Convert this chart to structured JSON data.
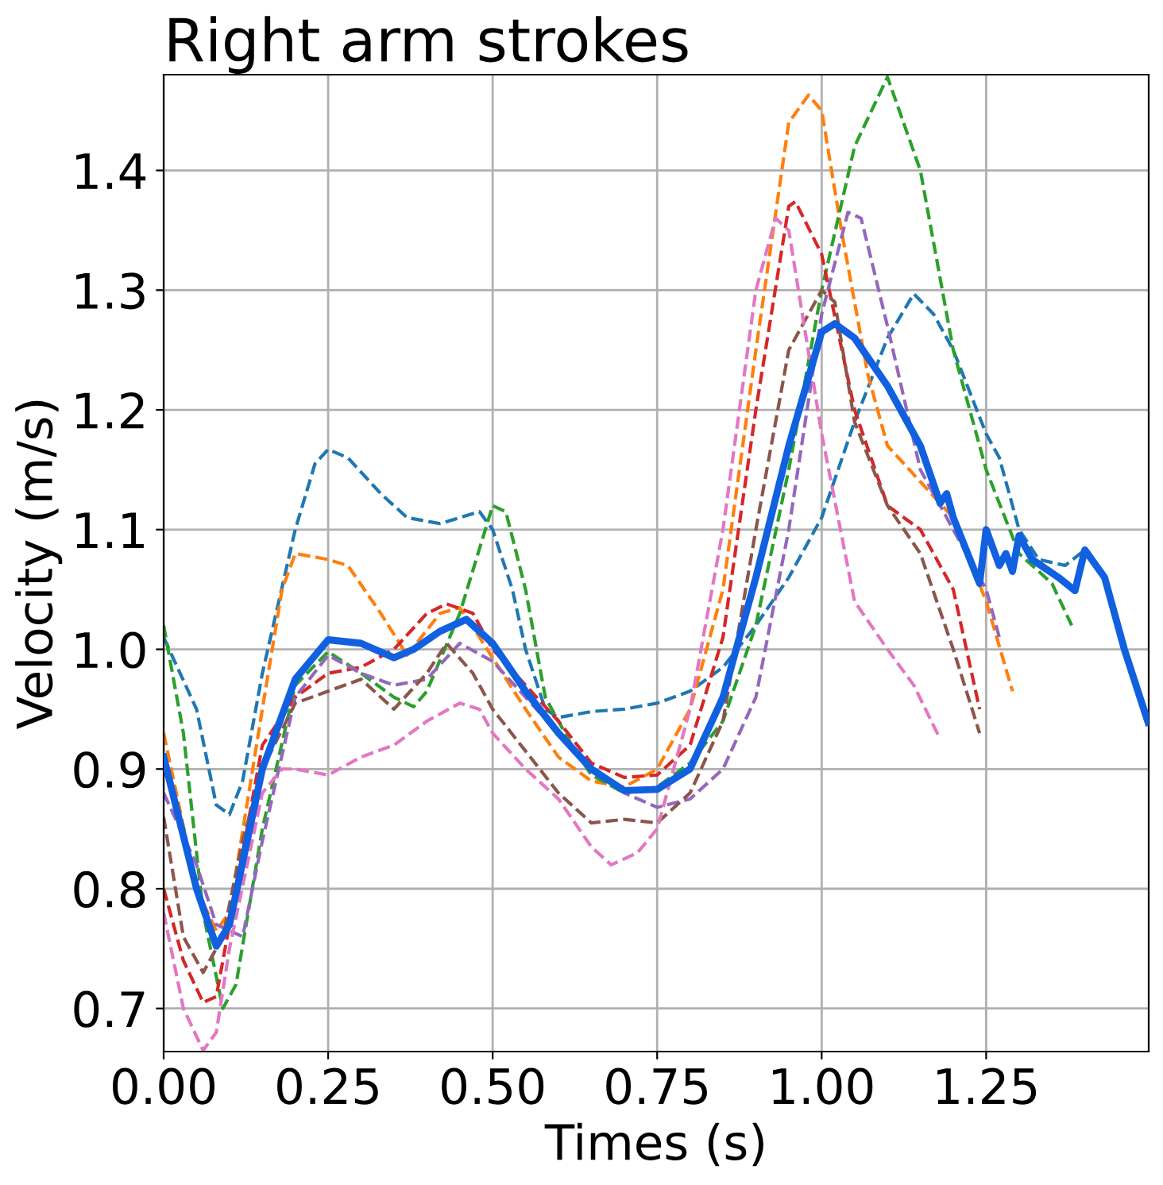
{
  "chart_data": {
    "type": "line",
    "title": "Right arm strokes",
    "xlabel": "Times (s)",
    "ylabel": "Velocity (m/s)",
    "xlim": [
      0,
      1.497
    ],
    "ylim": [
      0.664,
      1.48
    ],
    "xticks": [
      {
        "value": 0,
        "label": "0.00"
      },
      0.25,
      {
        "value": 0.5,
        "label": "0.50"
      },
      0.75,
      {
        "value": 1,
        "label": "1.00"
      },
      1.25
    ],
    "yticks": [
      0.7,
      0.8,
      0.9,
      {
        "value": 1,
        "label": "1.0"
      },
      1.1,
      1.2,
      1.3,
      1.4
    ],
    "grid": true,
    "legend": false,
    "marker": "none",
    "series": [
      {
        "color": "#1f77b4",
        "line_style": "dashed",
        "x": [
          0,
          0.05,
          0.08,
          0.1,
          0.12,
          0.15,
          0.2,
          0.23,
          0.25,
          0.28,
          0.33,
          0.37,
          0.42,
          0.45,
          0.48,
          0.5,
          0.53,
          0.55,
          0.58,
          0.6,
          0.65,
          0.7,
          0.75,
          0.8,
          0.85,
          0.9,
          0.95,
          1.0,
          1.05,
          1.1,
          1.14,
          1.17,
          1.2,
          1.25,
          1.27,
          1.3,
          1.33,
          1.37,
          1.4
        ],
        "values": [
          1.01,
          0.95,
          0.87,
          0.862,
          0.89,
          0.98,
          1.1,
          1.155,
          1.167,
          1.16,
          1.13,
          1.11,
          1.105,
          1.11,
          1.115,
          1.1,
          1.05,
          1.0,
          0.95,
          0.943,
          0.948,
          0.95,
          0.955,
          0.965,
          0.985,
          1.02,
          1.06,
          1.11,
          1.19,
          1.26,
          1.297,
          1.28,
          1.25,
          1.18,
          1.16,
          1.1,
          1.075,
          1.07,
          1.083
        ]
      },
      {
        "color": "#ff7f0e",
        "line_style": "dashed",
        "x": [
          0,
          0.05,
          0.08,
          0.1,
          0.15,
          0.18,
          0.2,
          0.25,
          0.28,
          0.33,
          0.37,
          0.42,
          0.45,
          0.48,
          0.55,
          0.6,
          0.65,
          0.7,
          0.75,
          0.8,
          0.85,
          0.9,
          0.95,
          0.98,
          1.0,
          1.03,
          1.07,
          1.1,
          1.15,
          1.2,
          1.25,
          1.29
        ],
        "values": [
          0.93,
          0.8,
          0.765,
          0.78,
          0.95,
          1.05,
          1.08,
          1.075,
          1.07,
          1.03,
          0.995,
          1.03,
          1.035,
          1.01,
          0.95,
          0.91,
          0.89,
          0.885,
          0.9,
          0.95,
          1.05,
          1.25,
          1.44,
          1.463,
          1.45,
          1.35,
          1.23,
          1.17,
          1.14,
          1.11,
          1.04,
          0.965
        ]
      },
      {
        "color": "#2ca02c",
        "line_style": "dashed",
        "x": [
          0,
          0.03,
          0.06,
          0.09,
          0.11,
          0.15,
          0.2,
          0.25,
          0.3,
          0.35,
          0.38,
          0.4,
          0.45,
          0.5,
          0.52,
          0.55,
          0.58,
          0.62,
          0.65,
          0.7,
          0.75,
          0.8,
          0.85,
          0.9,
          0.95,
          1.0,
          1.05,
          1.1,
          1.15,
          1.2,
          1.25,
          1.3,
          1.35,
          1.38
        ],
        "values": [
          1.02,
          0.93,
          0.78,
          0.7,
          0.72,
          0.85,
          0.97,
          0.998,
          0.98,
          0.96,
          0.952,
          0.965,
          1.03,
          1.12,
          1.115,
          1.05,
          0.96,
          0.92,
          0.895,
          0.88,
          0.885,
          0.905,
          0.94,
          1.02,
          1.15,
          1.3,
          1.42,
          1.478,
          1.4,
          1.25,
          1.15,
          1.08,
          1.055,
          1.02
        ]
      },
      {
        "color": "#d62728",
        "line_style": "dashed",
        "x": [
          0,
          0.03,
          0.06,
          0.08,
          0.1,
          0.15,
          0.2,
          0.25,
          0.3,
          0.35,
          0.4,
          0.43,
          0.47,
          0.5,
          0.55,
          0.6,
          0.65,
          0.7,
          0.75,
          0.8,
          0.85,
          0.9,
          0.95,
          0.96,
          1.0,
          1.05,
          1.1,
          1.15,
          1.2,
          1.24
        ],
        "values": [
          0.8,
          0.74,
          0.705,
          0.71,
          0.77,
          0.92,
          0.96,
          0.98,
          0.985,
          1.0,
          1.03,
          1.038,
          1.03,
          1.0,
          0.97,
          0.94,
          0.905,
          0.893,
          0.895,
          0.92,
          1.01,
          1.2,
          1.37,
          1.374,
          1.33,
          1.2,
          1.12,
          1.1,
          1.05,
          0.95
        ]
      },
      {
        "color": "#9467bd",
        "line_style": "dashed",
        "x": [
          0,
          0.05,
          0.08,
          0.12,
          0.15,
          0.2,
          0.25,
          0.3,
          0.35,
          0.4,
          0.45,
          0.5,
          0.55,
          0.6,
          0.65,
          0.7,
          0.75,
          0.8,
          0.85,
          0.9,
          0.95,
          1.0,
          1.04,
          1.06,
          1.1,
          1.15,
          1.2,
          1.25,
          1.27
        ],
        "values": [
          0.88,
          0.82,
          0.77,
          0.76,
          0.84,
          0.96,
          0.995,
          0.98,
          0.97,
          0.975,
          1.005,
          0.99,
          0.96,
          0.93,
          0.9,
          0.88,
          0.868,
          0.875,
          0.9,
          0.96,
          1.1,
          1.28,
          1.365,
          1.36,
          1.27,
          1.15,
          1.1,
          1.05,
          1.01
        ]
      },
      {
        "color": "#8c564b",
        "line_style": "dashed",
        "x": [
          0,
          0.03,
          0.06,
          0.09,
          0.12,
          0.15,
          0.2,
          0.25,
          0.3,
          0.35,
          0.4,
          0.43,
          0.47,
          0.5,
          0.55,
          0.6,
          0.65,
          0.7,
          0.75,
          0.8,
          0.85,
          0.9,
          0.95,
          1.0,
          1.02,
          1.05,
          1.1,
          1.15,
          1.2,
          1.24
        ],
        "values": [
          0.86,
          0.76,
          0.73,
          0.76,
          0.84,
          0.9,
          0.955,
          0.965,
          0.975,
          0.95,
          0.98,
          1.005,
          0.98,
          0.95,
          0.915,
          0.88,
          0.855,
          0.858,
          0.855,
          0.88,
          0.94,
          1.1,
          1.25,
          1.3,
          1.29,
          1.19,
          1.12,
          1.08,
          1.0,
          0.93
        ]
      },
      {
        "color": "#e377c2",
        "line_style": "dashed",
        "x": [
          0,
          0.03,
          0.06,
          0.08,
          0.1,
          0.15,
          0.18,
          0.2,
          0.25,
          0.3,
          0.35,
          0.4,
          0.45,
          0.48,
          0.5,
          0.55,
          0.6,
          0.65,
          0.68,
          0.72,
          0.75,
          0.8,
          0.85,
          0.9,
          0.93,
          0.95,
          1.0,
          1.05,
          1.1,
          1.14,
          1.18
        ],
        "values": [
          0.78,
          0.7,
          0.665,
          0.68,
          0.75,
          0.88,
          0.9,
          0.9,
          0.895,
          0.91,
          0.92,
          0.94,
          0.955,
          0.95,
          0.93,
          0.9,
          0.875,
          0.835,
          0.82,
          0.83,
          0.85,
          0.95,
          1.1,
          1.3,
          1.36,
          1.35,
          1.18,
          1.04,
          1.0,
          0.97,
          0.925
        ]
      },
      {
        "color": "#1060e0",
        "line_style": "solid",
        "x": [
          0,
          0.05,
          0.08,
          0.1,
          0.15,
          0.2,
          0.25,
          0.3,
          0.35,
          0.38,
          0.42,
          0.46,
          0.5,
          0.55,
          0.6,
          0.65,
          0.7,
          0.75,
          0.8,
          0.85,
          0.9,
          0.95,
          1.0,
          1.02,
          1.05,
          1.1,
          1.15,
          1.18,
          1.19,
          1.2,
          1.24,
          1.25,
          1.27,
          1.28,
          1.29,
          1.3,
          1.32,
          1.36,
          1.385,
          1.4,
          1.43,
          1.46,
          1.496
        ],
        "values": [
          0.91,
          0.8,
          0.752,
          0.77,
          0.9,
          0.975,
          1.008,
          1.005,
          0.993,
          1.0,
          1.015,
          1.025,
          1.005,
          0.965,
          0.93,
          0.9,
          0.882,
          0.883,
          0.9,
          0.96,
          1.06,
          1.17,
          1.265,
          1.272,
          1.26,
          1.22,
          1.17,
          1.122,
          1.13,
          1.11,
          1.055,
          1.1,
          1.07,
          1.08,
          1.065,
          1.095,
          1.075,
          1.06,
          1.049,
          1.083,
          1.06,
          1.0,
          0.939
        ]
      }
    ]
  }
}
